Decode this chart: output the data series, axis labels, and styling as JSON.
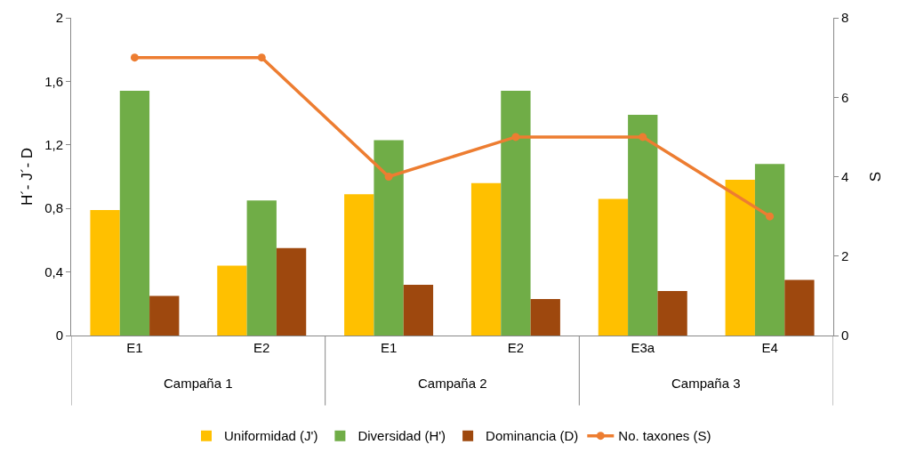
{
  "chart_data": {
    "type": "bar",
    "categories": [
      "E1",
      "E2",
      "E1",
      "E2",
      "E3a",
      "E4"
    ],
    "series": [
      {
        "name": "Uniformidad (J')",
        "color": "#ffc000",
        "values": [
          0.79,
          0.44,
          0.89,
          0.96,
          0.86,
          0.98
        ]
      },
      {
        "name": "Diversidad (H')",
        "color": "#70ad47",
        "values": [
          1.54,
          0.85,
          1.23,
          1.54,
          1.39,
          1.08
        ]
      },
      {
        "name": "Dominancia (D)",
        "color": "#9e480e",
        "values": [
          0.25,
          0.55,
          0.32,
          0.23,
          0.28,
          0.35
        ]
      },
      {
        "name": "No. taxones (S)",
        "type": "line",
        "axis": "y2",
        "color": "#ed7d31",
        "marker": "circle",
        "values": [
          7,
          7,
          4,
          5,
          5,
          3
        ]
      }
    ],
    "ylabel": "H´- J´- D",
    "y2label": "S",
    "ylim": [
      0,
      2
    ],
    "yticks": [
      0,
      {
        "value": 0.4,
        "label": "0,4"
      },
      {
        "value": 0.8,
        "label": "0,8"
      },
      {
        "value": 1.2,
        "label": "1,2"
      },
      {
        "value": 1.6,
        "label": "1,6"
      },
      2
    ],
    "y2lim": [
      0,
      8
    ],
    "y2ticks": [
      0,
      2,
      4,
      6,
      8
    ],
    "annotations": [
      "Campaña 1",
      "Campaña 2",
      "Campaña 3"
    ],
    "grid": false,
    "legend": "bottom"
  }
}
